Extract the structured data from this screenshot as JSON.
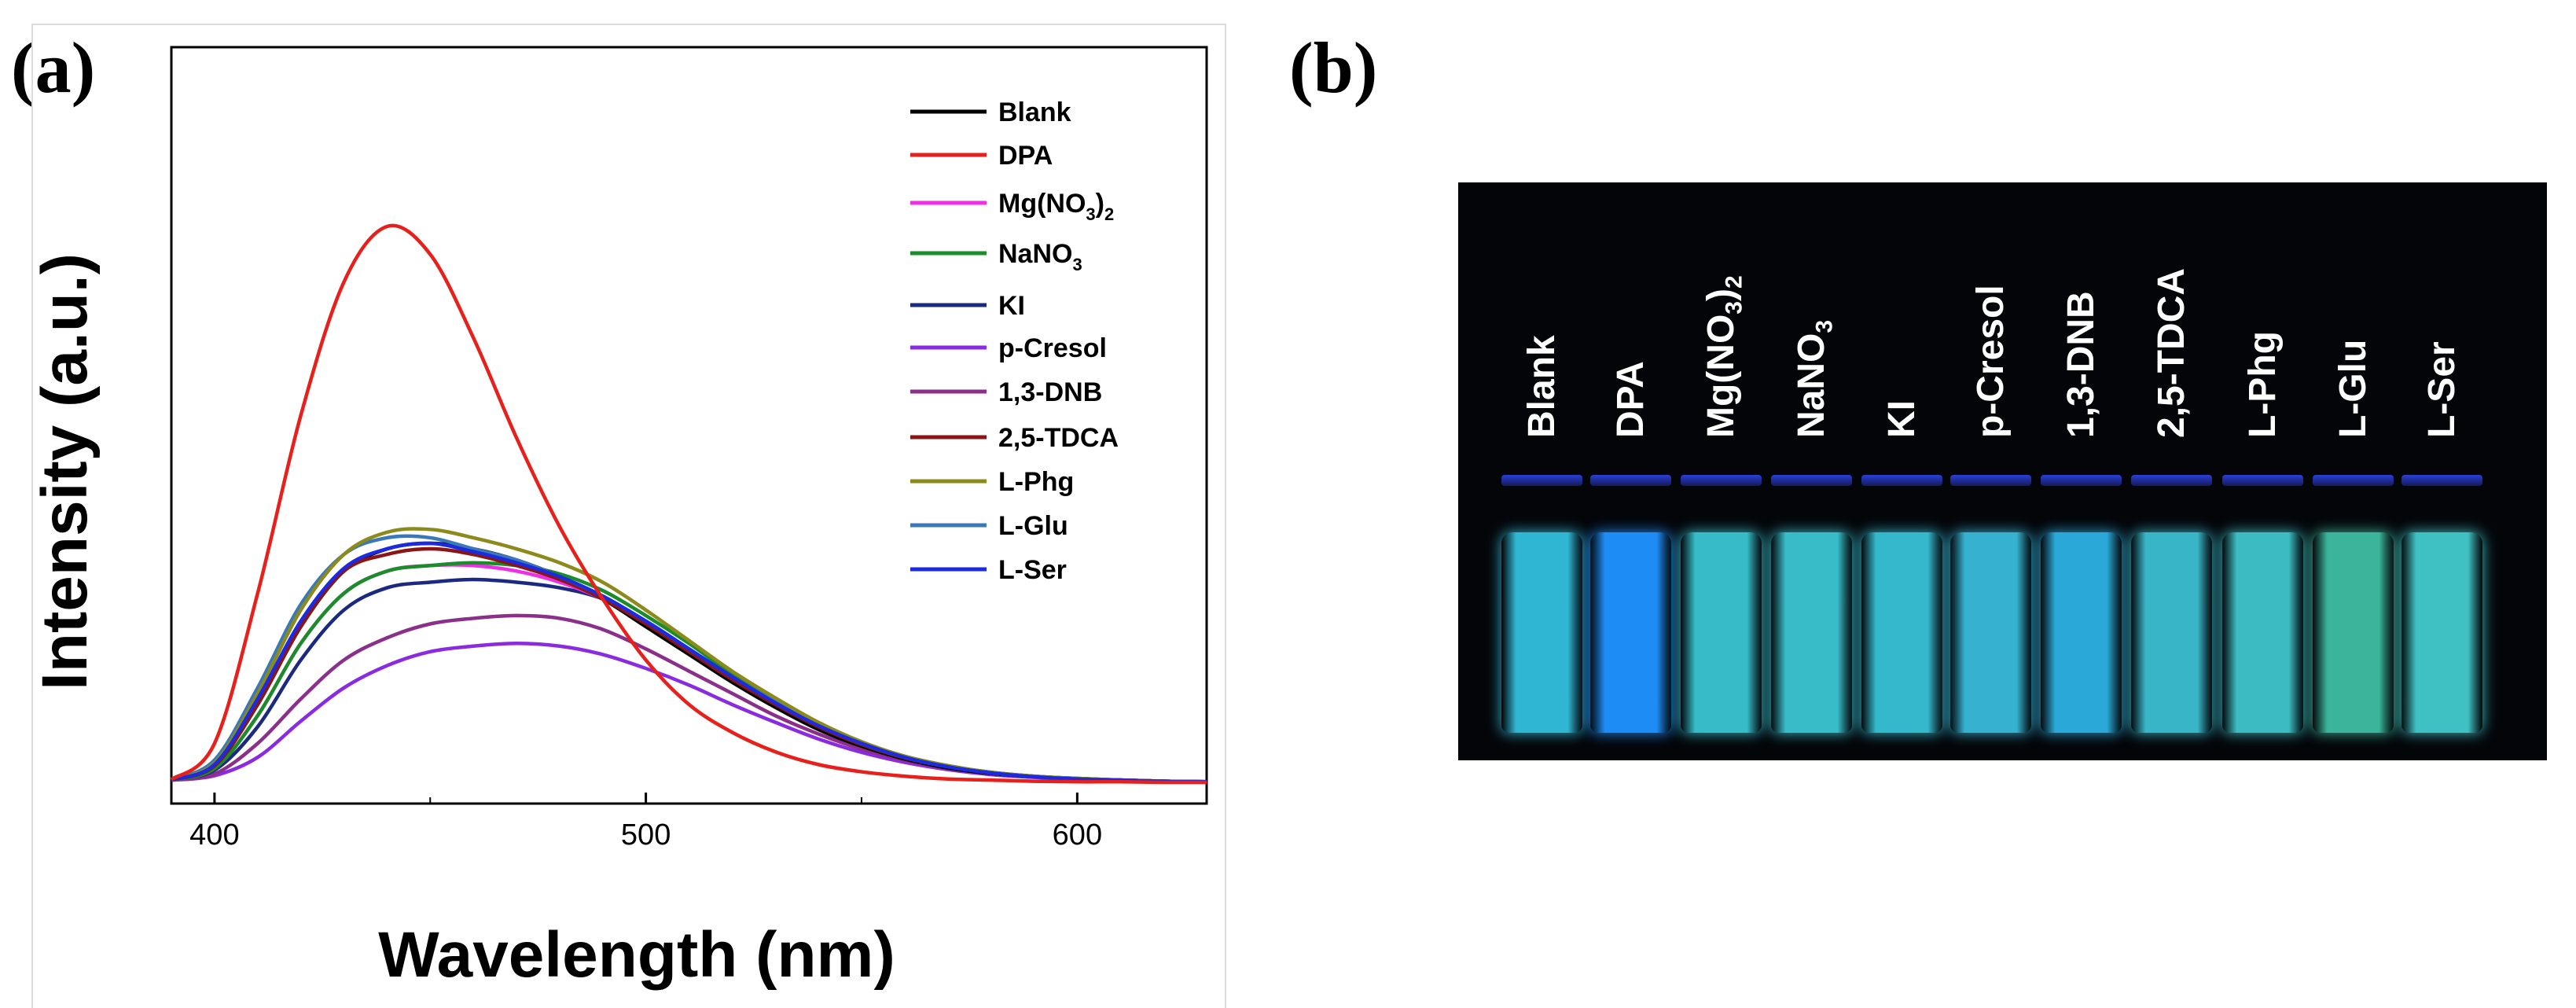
{
  "panel_a_label": "(a)",
  "panel_b_label": "(b)",
  "chart_data": {
    "type": "line",
    "title": "",
    "xlabel": "Wavelength (nm)",
    "ylabel": "Intensity (a.u.)",
    "xlim": [
      390,
      630
    ],
    "ylim": [
      0,
      1.0
    ],
    "x_ticks": [
      400,
      500,
      600
    ],
    "y_ticks_shown": false,
    "grid": false,
    "legend_position": "top-right",
    "x": [
      390,
      400,
      410,
      420,
      430,
      440,
      450,
      460,
      470,
      480,
      490,
      500,
      510,
      520,
      530,
      540,
      550,
      560,
      570,
      580,
      590,
      600,
      610,
      620,
      630
    ],
    "series": [
      {
        "name": "Blank",
        "color": "#000000",
        "values": [
          0.005,
          0.03,
          0.14,
          0.28,
          0.38,
          0.42,
          0.43,
          0.42,
          0.4,
          0.37,
          0.33,
          0.28,
          0.23,
          0.18,
          0.135,
          0.095,
          0.065,
          0.042,
          0.026,
          0.016,
          0.01,
          0.006,
          0.004,
          0.002,
          0.001
        ]
      },
      {
        "name": "DPA",
        "color": "#e8201c",
        "values": [
          0.005,
          0.07,
          0.34,
          0.66,
          0.9,
          1.0,
          0.95,
          0.8,
          0.62,
          0.46,
          0.33,
          0.22,
          0.14,
          0.09,
          0.055,
          0.032,
          0.019,
          0.011,
          0.006,
          0.004,
          0.002,
          0.001,
          0.001,
          0.0,
          0.0
        ]
      },
      {
        "name": "Mg(NO3)2",
        "color": "#ee2fe6",
        "values": [
          0.005,
          0.025,
          0.12,
          0.25,
          0.34,
          0.38,
          0.39,
          0.39,
          0.38,
          0.36,
          0.33,
          0.285,
          0.235,
          0.185,
          0.14,
          0.1,
          0.068,
          0.044,
          0.028,
          0.017,
          0.01,
          0.006,
          0.004,
          0.002,
          0.001
        ]
      },
      {
        "name": "NaNO3",
        "color": "#1a8c2a",
        "values": [
          0.005,
          0.025,
          0.12,
          0.25,
          0.34,
          0.38,
          0.39,
          0.395,
          0.39,
          0.375,
          0.345,
          0.3,
          0.25,
          0.195,
          0.148,
          0.106,
          0.072,
          0.047,
          0.03,
          0.018,
          0.011,
          0.007,
          0.004,
          0.002,
          0.001
        ]
      },
      {
        "name": "KI",
        "color": "#1b2a80",
        "values": [
          0.005,
          0.022,
          0.1,
          0.22,
          0.31,
          0.35,
          0.36,
          0.365,
          0.36,
          0.35,
          0.33,
          0.29,
          0.24,
          0.19,
          0.145,
          0.104,
          0.071,
          0.046,
          0.029,
          0.018,
          0.011,
          0.007,
          0.004,
          0.002,
          0.001
        ]
      },
      {
        "name": "p-Cresol",
        "color": "#8a2be2",
        "values": [
          0.004,
          0.012,
          0.045,
          0.11,
          0.17,
          0.21,
          0.235,
          0.245,
          0.25,
          0.245,
          0.23,
          0.205,
          0.175,
          0.14,
          0.108,
          0.078,
          0.054,
          0.036,
          0.023,
          0.014,
          0.009,
          0.005,
          0.003,
          0.002,
          0.001
        ]
      },
      {
        "name": "1,3-DNB",
        "color": "#8a2f8a",
        "values": [
          0.004,
          0.015,
          0.07,
          0.15,
          0.22,
          0.26,
          0.285,
          0.295,
          0.3,
          0.295,
          0.275,
          0.24,
          0.2,
          0.16,
          0.12,
          0.087,
          0.06,
          0.04,
          0.025,
          0.016,
          0.01,
          0.006,
          0.003,
          0.002,
          0.001
        ]
      },
      {
        "name": "2,5-TDCA",
        "color": "#8b1414",
        "values": [
          0.005,
          0.03,
          0.14,
          0.28,
          0.38,
          0.41,
          0.42,
          0.41,
          0.39,
          0.365,
          0.33,
          0.285,
          0.235,
          0.185,
          0.14,
          0.1,
          0.068,
          0.044,
          0.028,
          0.017,
          0.01,
          0.006,
          0.004,
          0.002,
          0.001
        ]
      },
      {
        "name": "L-Phg",
        "color": "#8c8a1a",
        "values": [
          0.005,
          0.035,
          0.16,
          0.31,
          0.41,
          0.45,
          0.455,
          0.44,
          0.42,
          0.395,
          0.36,
          0.31,
          0.255,
          0.2,
          0.152,
          0.108,
          0.073,
          0.047,
          0.03,
          0.018,
          0.011,
          0.007,
          0.004,
          0.002,
          0.001
        ]
      },
      {
        "name": "L-Glu",
        "color": "#3a78b8",
        "values": [
          0.005,
          0.04,
          0.17,
          0.32,
          0.41,
          0.44,
          0.44,
          0.42,
          0.4,
          0.37,
          0.335,
          0.29,
          0.24,
          0.19,
          0.145,
          0.103,
          0.07,
          0.045,
          0.028,
          0.017,
          0.01,
          0.006,
          0.004,
          0.002,
          0.001
        ]
      },
      {
        "name": "L-Ser",
        "color": "#1c2ae0",
        "values": [
          0.005,
          0.032,
          0.15,
          0.29,
          0.385,
          0.42,
          0.43,
          0.415,
          0.395,
          0.37,
          0.335,
          0.29,
          0.24,
          0.19,
          0.143,
          0.102,
          0.07,
          0.045,
          0.028,
          0.017,
          0.01,
          0.006,
          0.004,
          0.002,
          0.001
        ]
      }
    ]
  },
  "legend_labels": [
    {
      "main": "Blank",
      "sub": "",
      "tail": ""
    },
    {
      "main": "DPA",
      "sub": "",
      "tail": ""
    },
    {
      "main": "Mg(NO",
      "sub": "3",
      "tail": ")",
      "sub2": "2"
    },
    {
      "main": "NaNO",
      "sub": "3",
      "tail": ""
    },
    {
      "main": "KI",
      "sub": "",
      "tail": ""
    },
    {
      "main": "p-Cresol",
      "sub": "",
      "tail": ""
    },
    {
      "main": "1,3-DNB",
      "sub": "",
      "tail": ""
    },
    {
      "main": "2,5-TDCA",
      "sub": "",
      "tail": ""
    },
    {
      "main": "L-Phg",
      "sub": "",
      "tail": ""
    },
    {
      "main": "L-Glu",
      "sub": "",
      "tail": ""
    },
    {
      "main": "L-Ser",
      "sub": "",
      "tail": ""
    }
  ],
  "photo": {
    "vials": [
      {
        "label": "Blank",
        "color": "#2fb6d2"
      },
      {
        "label": "DPA",
        "color": "#1e8cf5"
      },
      {
        "label": "Mg(NO3)2",
        "color": "#35bcc8"
      },
      {
        "label": "NaNO3",
        "color": "#38bdc8"
      },
      {
        "label": "KI",
        "color": "#34b8cc"
      },
      {
        "label": "p-Cresol",
        "color": "#36b2d0"
      },
      {
        "label": "1,3-DNB",
        "color": "#2aa8d8"
      },
      {
        "label": "2,5-TDCA",
        "color": "#38b6c8"
      },
      {
        "label": "L-Phg",
        "color": "#3cbcc2"
      },
      {
        "label": "L-Glu",
        "color": "#3ab49a"
      },
      {
        "label": "L-Ser",
        "color": "#3fc0c2"
      }
    ]
  }
}
